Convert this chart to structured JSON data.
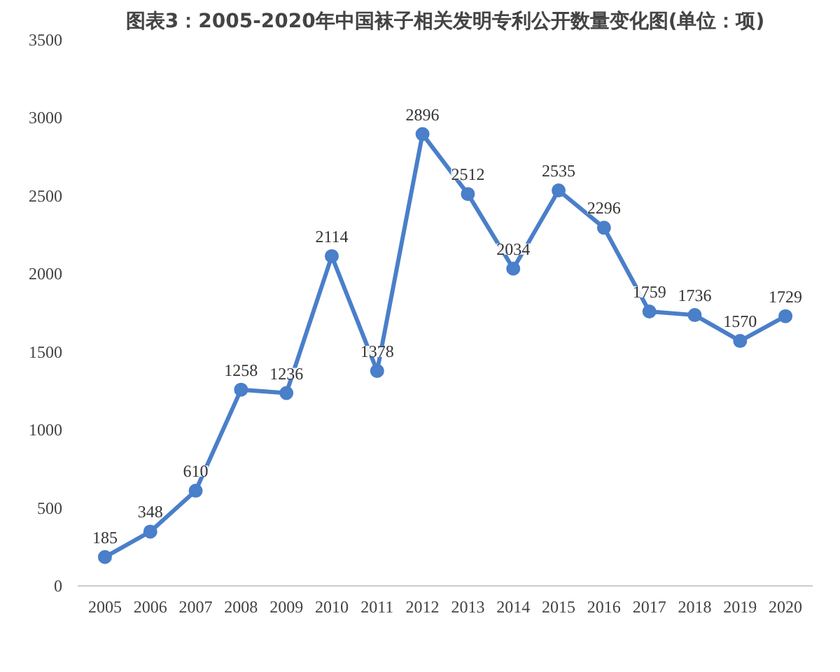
{
  "chart_data": {
    "type": "line",
    "title": "图表3：2005-2020年中国袜子相关发明专利公开数量变化图(单位：项)",
    "categories": [
      "2005",
      "2006",
      "2007",
      "2008",
      "2009",
      "2010",
      "2011",
      "2012",
      "2013",
      "2014",
      "2015",
      "2016",
      "2017",
      "2018",
      "2019",
      "2020"
    ],
    "series": [
      {
        "color": "#4a7fc9",
        "values": [
          185,
          348,
          610,
          1258,
          1236,
          2114,
          1378,
          2896,
          2512,
          2034,
          2535,
          2296,
          1759,
          1736,
          1570,
          1729
        ]
      }
    ],
    "ylim": [
      0,
      3500
    ],
    "yticks": [
      0,
      500,
      1000,
      1500,
      2000,
      2500,
      3000,
      3500
    ],
    "marker": "circle",
    "line_style": "solid",
    "data_labels": true,
    "grid": false
  }
}
